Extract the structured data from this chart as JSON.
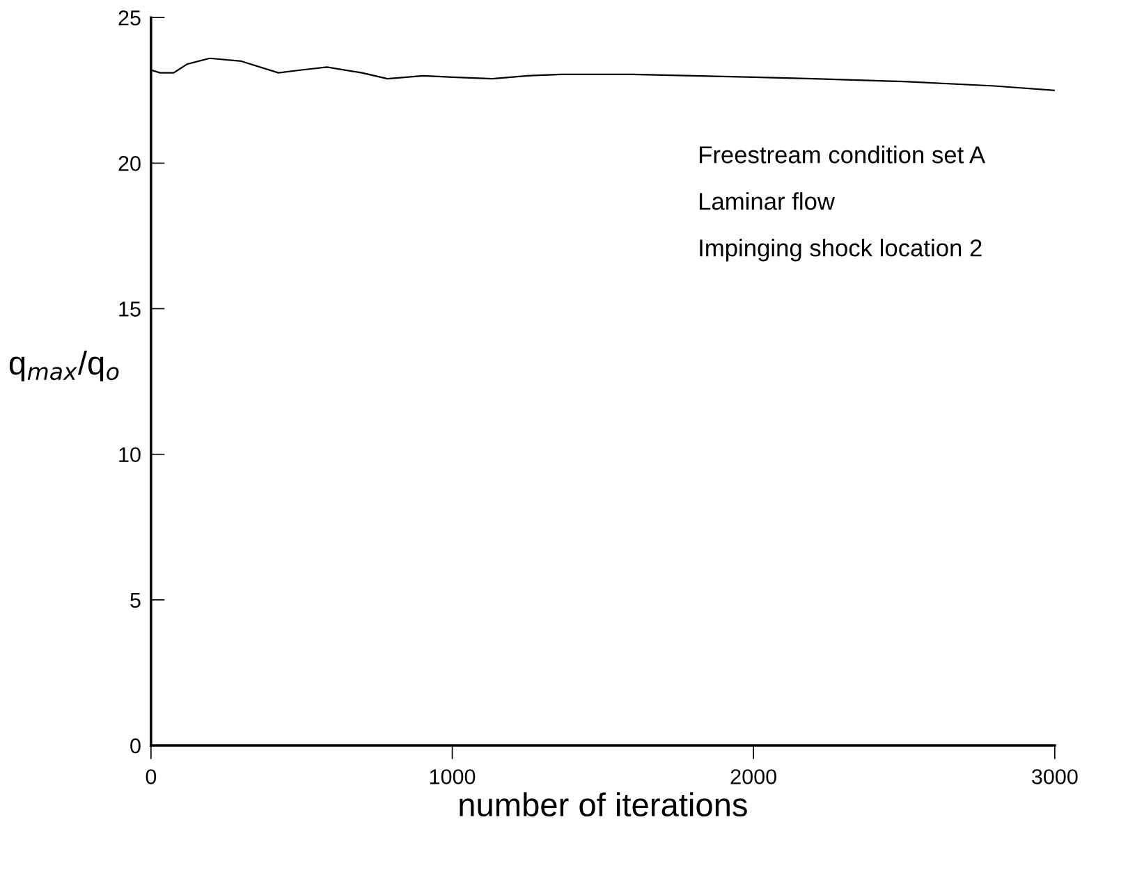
{
  "chart_data": {
    "type": "line",
    "xlabel": "number of iterations",
    "ylabel": "q$_{max}$/q$_{o}$",
    "x": [
      0,
      30,
      75,
      120,
      195,
      300,
      423,
      500,
      584,
      700,
      785,
      904,
      1000,
      1133,
      1250,
      1362,
      1600,
      1800,
      2000,
      2200,
      2500,
      2800,
      3000
    ],
    "series": [
      {
        "color": "#000000",
        "values": [
          23.2,
          23.1,
          23.1,
          23.4,
          23.6,
          23.5,
          23.1,
          23.2,
          23.3,
          23.1,
          22.9,
          23.0,
          22.95,
          22.9,
          23.0,
          23.05,
          23.05,
          23.0,
          22.95,
          22.9,
          22.8,
          22.65,
          22.5
        ]
      }
    ],
    "xlim": [
      0,
      3000
    ],
    "ylim": [
      0,
      25
    ],
    "xticks": [
      0,
      1000,
      2000,
      3000
    ],
    "yticks": [
      0,
      5,
      10,
      15,
      20,
      25
    ],
    "grid": false,
    "legend": false,
    "marker": "none",
    "line_style": "solid",
    "annotations": [
      "Freestream condition set A",
      "Laminar flow",
      "Impinging shock location 2"
    ]
  }
}
